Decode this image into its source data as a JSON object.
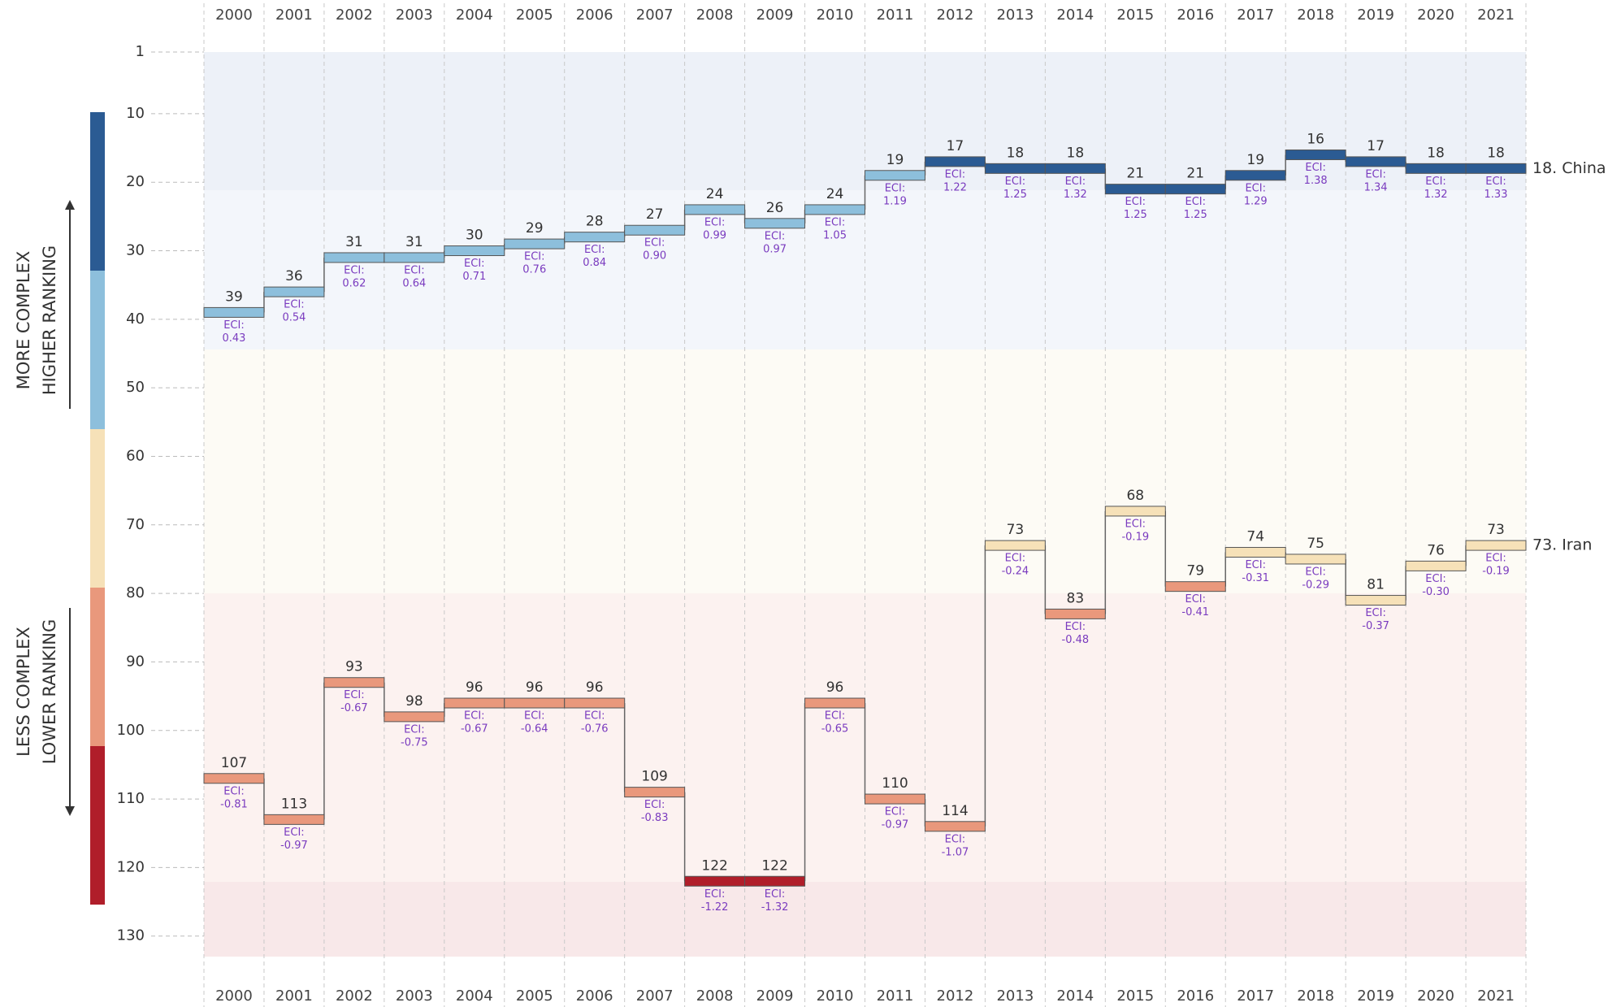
{
  "chart_data": {
    "type": "step",
    "x": [
      2000,
      2001,
      2002,
      2003,
      2004,
      2005,
      2006,
      2007,
      2008,
      2009,
      2010,
      2011,
      2012,
      2013,
      2014,
      2015,
      2016,
      2017,
      2018,
      2019,
      2020,
      2021
    ],
    "xlim": [
      1999.5,
      2021.5
    ],
    "ylim": [
      1,
      133
    ],
    "y_reversed": true,
    "yticks": [
      1,
      10,
      20,
      30,
      40,
      50,
      60,
      70,
      80,
      90,
      100,
      110,
      120,
      130
    ],
    "annotations": {
      "upper": [
        "MORE COMPLEX",
        "HIGHER RANKING"
      ],
      "lower": [
        "LESS COMPLEX",
        "LOWER RANKING"
      ]
    },
    "eci_prefix": "ECI:",
    "series": [
      {
        "name": "18. China",
        "values": [
          39,
          36,
          31,
          31,
          30,
          29,
          28,
          27,
          24,
          26,
          24,
          19,
          17,
          18,
          18,
          21,
          21,
          19,
          16,
          17,
          18,
          18
        ],
        "eci": [
          0.43,
          0.54,
          0.62,
          0.64,
          0.71,
          0.76,
          0.84,
          0.9,
          0.99,
          0.97,
          1.05,
          1.19,
          1.22,
          1.25,
          1.32,
          1.25,
          1.25,
          1.29,
          1.38,
          1.34,
          1.32,
          1.33
        ],
        "eci_labels": [
          "0.43",
          "0.54",
          "0.62",
          "0.64",
          "0.71",
          "0.76",
          "0.84",
          "0.90",
          "0.99",
          "0.97",
          "1.05",
          "1.19",
          "1.22",
          "1.25",
          "1.32",
          "1.25",
          "1.25",
          "1.29",
          "1.38",
          "1.34",
          "1.32",
          "1.33"
        ],
        "colors": [
          "#8dbfdc",
          "#8dbfdc",
          "#8dbfdc",
          "#8dbfdc",
          "#8dbfdc",
          "#8dbfdc",
          "#8dbfdc",
          "#8dbfdc",
          "#8dbfdc",
          "#8dbfdc",
          "#8dbfdc",
          "#8dbfdc",
          "#2b5b93",
          "#2b5b93",
          "#2b5b93",
          "#2b5b93",
          "#2b5b93",
          "#2b5b93",
          "#2b5b93",
          "#2b5b93",
          "#2b5b93",
          "#2b5b93"
        ]
      },
      {
        "name": "73. Iran",
        "values": [
          107,
          113,
          93,
          98,
          96,
          96,
          96,
          109,
          122,
          122,
          96,
          110,
          114,
          73,
          83,
          68,
          79,
          74,
          75,
          81,
          76,
          73
        ],
        "eci": [
          -0.81,
          -0.97,
          -0.67,
          -0.75,
          -0.67,
          -0.64,
          -0.76,
          -0.83,
          -1.22,
          -1.32,
          -0.65,
          -0.97,
          -1.07,
          -0.24,
          -0.48,
          -0.19,
          -0.41,
          -0.31,
          -0.29,
          -0.37,
          -0.3,
          -0.19
        ],
        "eci_labels": [
          "-0.81",
          "-0.97",
          "-0.67",
          "-0.75",
          "-0.67",
          "-0.64",
          "-0.76",
          "-0.83",
          "-1.22",
          "-1.32",
          "-0.65",
          "-0.97",
          "-1.07",
          "-0.24",
          "-0.48",
          "-0.19",
          "-0.41",
          "-0.31",
          "-0.29",
          "-0.37",
          "-0.30",
          "-0.19"
        ],
        "colors": [
          "#e9987c",
          "#e9987c",
          "#e9987c",
          "#e9987c",
          "#e9987c",
          "#e9987c",
          "#e9987c",
          "#e9987c",
          "#b01e2a",
          "#b01e2a",
          "#e9987c",
          "#e9987c",
          "#e9987c",
          "#f6e1b8",
          "#e9987c",
          "#f6e1b8",
          "#e9987c",
          "#f6e1b8",
          "#f6e1b8",
          "#f6e1b8",
          "#f6e1b8",
          "#f6e1b8"
        ]
      }
    ]
  }
}
